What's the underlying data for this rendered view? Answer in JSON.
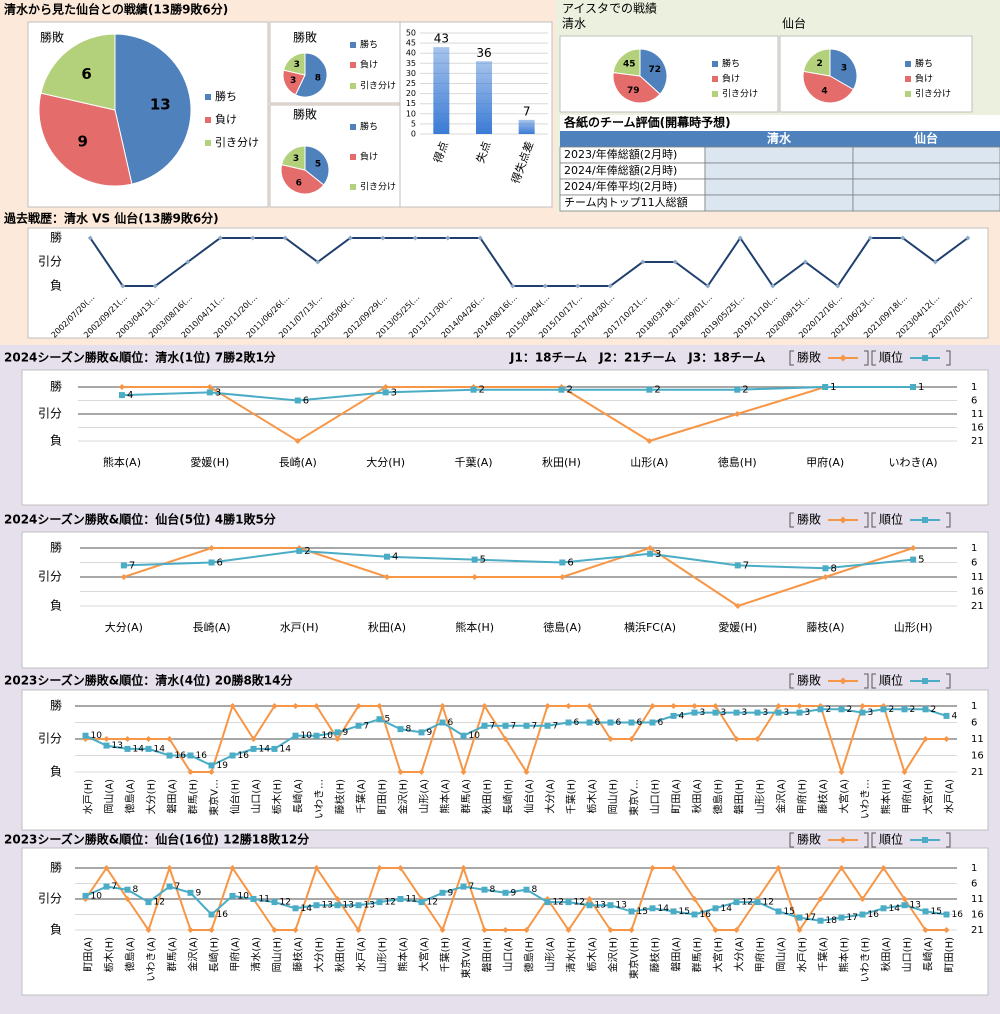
{
  "headings": {
    "overall": "清水から見た仙台との戦績(13勝9敗6分)",
    "stadium": "アイスタでの戦績"
  },
  "table": {
    "title": "各紙のチーム評価(開幕時予想)",
    "columns": [
      "清水",
      "仙台"
    ],
    "rows": [
      "2023/年俸総額(2月時)",
      "2024/年俸総額(2月時)",
      "2024/年俸平均(2月時)",
      "チーム内トップ11人総額"
    ]
  },
  "chart_data": [
    {
      "type": "pie",
      "title": "勝敗",
      "categories": [
        "勝ち",
        "負け",
        "引き分け"
      ],
      "values": [
        13,
        9,
        6
      ],
      "colors": [
        "#4f81bd",
        "#e46c6a",
        "#b3d07a"
      ]
    },
    {
      "type": "pie",
      "title": "勝敗",
      "categories": [
        "勝ち",
        "負け",
        "引き分け"
      ],
      "values": [
        8,
        3,
        3
      ],
      "colors": [
        "#4f81bd",
        "#e46c6a",
        "#b3d07a"
      ]
    },
    {
      "type": "pie",
      "title": "勝敗",
      "categories": [
        "勝ち",
        "負け",
        "引き分け"
      ],
      "values": [
        5,
        6,
        3
      ],
      "colors": [
        "#4f81bd",
        "#e46c6a",
        "#b3d07a"
      ]
    },
    {
      "type": "bar",
      "categories": [
        "得点",
        "失点",
        "得失点差"
      ],
      "values": [
        43,
        36,
        7
      ],
      "color": "#3a7bd5",
      "ylim": [
        0,
        50
      ],
      "yticks": [
        0,
        5,
        10,
        15,
        20,
        25,
        30,
        35,
        40,
        45,
        50
      ],
      "grid": true
    },
    {
      "type": "pie",
      "title": "清水",
      "categories": [
        "勝ち",
        "負け",
        "引き分け"
      ],
      "values": [
        72,
        79,
        45
      ],
      "colors": [
        "#4f81bd",
        "#e46c6a",
        "#b3d07a"
      ]
    },
    {
      "type": "pie",
      "title": "仙台",
      "categories": [
        "勝ち",
        "負け",
        "引き分け"
      ],
      "values": [
        3,
        4,
        2
      ],
      "colors": [
        "#4f81bd",
        "#e46c6a",
        "#b3d07a"
      ]
    },
    {
      "type": "line",
      "title": "過去戦歴：清水 VS 仙台(13勝9敗6分)",
      "categories": [
        "2002/07/20(…",
        "2002/09/21(…",
        "2003/04/13(…",
        "2003/08/16(…",
        "2010/04/11(…",
        "2010/11/20(…",
        "2011/06/26(…",
        "2011/07/13(…",
        "2012/05/06(…",
        "2012/09/29(…",
        "2013/05/25(…",
        "2013/11/30(…",
        "2014/04/26(…",
        "2014/08/16(…",
        "2015/04/04(…",
        "2015/10/17(…",
        "2017/04/30(…",
        "2017/10/21(…",
        "2018/03/18(…",
        "2018/09/01(…",
        "2019/05/25(…",
        "2019/11/10(…",
        "2020/08/15(…",
        "2020/12/16(…",
        "2021/06/23(…",
        "2021/09/18(…",
        "2023/04/12(…",
        "2023/07/05(…"
      ],
      "values": [
        1,
        -1,
        -1,
        0,
        1,
        1,
        1,
        0,
        1,
        1,
        1,
        1,
        1,
        -1,
        -1,
        -1,
        -1,
        0,
        0,
        -1,
        1,
        -1,
        0,
        -1,
        1,
        1,
        0,
        1
      ],
      "color": "#1f3f6e",
      "ylim": [
        -1,
        1
      ],
      "yticks": [
        {
          "value": 1,
          "label": "勝"
        },
        {
          "value": 0,
          "label": "引分"
        },
        {
          "value": -1,
          "label": "負"
        }
      ],
      "grid": false
    },
    {
      "type": "line",
      "title": "2024シーズン勝敗&順位：清水(1位) 7勝2敗1分",
      "annotation": "J1：18チーム　J2：21チーム　J3：18チーム",
      "categories": [
        "熊本(A)",
        "愛媛(H)",
        "長崎(A)",
        "大分(H)",
        "千葉(A)",
        "秋田(H)",
        "山形(A)",
        "徳島(H)",
        "甲府(A)",
        "いわき(A)"
      ],
      "series": [
        {
          "name": "勝敗",
          "color": "#f79646",
          "values": [
            1,
            1,
            -1,
            1,
            1,
            1,
            -1,
            0,
            1,
            1
          ]
        },
        {
          "name": "順位",
          "color": "#4bacc6",
          "axis": "y2",
          "values": [
            4,
            3,
            6,
            3,
            2,
            2,
            2,
            2,
            1,
            1
          ]
        }
      ],
      "ylim": [
        -1,
        1
      ],
      "yticks": [
        {
          "value": 1,
          "label": "勝"
        },
        {
          "value": 0,
          "label": "引分"
        },
        {
          "value": -1,
          "label": "負"
        }
      ],
      "y2lim": [
        21,
        1
      ],
      "y2ticks": [
        1,
        6,
        11,
        16,
        21
      ],
      "grid": true
    },
    {
      "type": "line",
      "title": "2024シーズン勝敗&順位：仙台(5位) 4勝1敗5分",
      "categories": [
        "大分(A)",
        "長崎(A)",
        "水戸(H)",
        "秋田(A)",
        "熊本(H)",
        "徳島(A)",
        "横浜FC(A)",
        "愛媛(H)",
        "藤枝(A)",
        "山形(H)"
      ],
      "series": [
        {
          "name": "勝敗",
          "color": "#f79646",
          "values": [
            0,
            1,
            1,
            0,
            0,
            0,
            1,
            -1,
            0,
            1
          ]
        },
        {
          "name": "順位",
          "color": "#4bacc6",
          "axis": "y2",
          "values": [
            7,
            6,
            2,
            4,
            5,
            6,
            3,
            7,
            8,
            5
          ]
        }
      ],
      "ylim": [
        -1,
        1
      ],
      "yticks": [
        {
          "value": 1,
          "label": "勝"
        },
        {
          "value": 0,
          "label": "引分"
        },
        {
          "value": -1,
          "label": "負"
        }
      ],
      "y2lim": [
        21,
        1
      ],
      "y2ticks": [
        1,
        6,
        11,
        16,
        21
      ],
      "grid": true
    },
    {
      "type": "line",
      "title": "2023シーズン勝敗&順位：清水(4位) 20勝8敗14分",
      "categories": [
        "水戸(H)",
        "岡山(A)",
        "徳島(A)",
        "大分(H)",
        "磐田(A)",
        "群馬(H)",
        "東京V…",
        "仙台(H)",
        "山口(A)",
        "栃木(H)",
        "長崎(A)",
        "いわき…",
        "藤枝(H)",
        "千葉(A)",
        "町田(H)",
        "金沢(H)",
        "山形(A)",
        "熊本(A)",
        "群馬(A)",
        "秋田(H)",
        "長崎(H)",
        "仙台(A)",
        "大分(A)",
        "千葉(H)",
        "栃木(A)",
        "岡山(H)",
        "東京V…",
        "山口(H)",
        "町田(A)",
        "秋田(A)",
        "徳島(H)",
        "磐田(H)",
        "山形(H)",
        "金沢(A)",
        "甲府(H)",
        "藤枝(A)",
        "大宮(A)",
        "いわき…",
        "熊本(H)",
        "甲府(A)",
        "大宮(H)",
        "水戸(A)"
      ],
      "series": [
        {
          "name": "勝敗",
          "color": "#f79646",
          "values": [
            0,
            0,
            0,
            0,
            0,
            -1,
            -1,
            1,
            0,
            1,
            1,
            1,
            0,
            1,
            1,
            -1,
            -1,
            1,
            -1,
            1,
            0,
            -1,
            1,
            1,
            1,
            0,
            0,
            1,
            1,
            1,
            1,
            0,
            0,
            1,
            1,
            1,
            -1,
            1,
            1,
            -1,
            0,
            0
          ]
        },
        {
          "name": "順位",
          "color": "#4bacc6",
          "axis": "y2",
          "values": [
            10,
            13,
            14,
            14,
            16,
            16,
            19,
            16,
            14,
            14,
            10,
            10,
            9,
            7,
            5,
            8,
            9,
            6,
            10,
            7,
            7,
            7,
            7,
            6,
            6,
            6,
            6,
            6,
            4,
            3,
            3,
            3,
            3,
            3,
            3,
            2,
            2,
            3,
            2,
            2,
            2,
            4
          ]
        }
      ],
      "ylim": [
        -1,
        1
      ],
      "yticks": [
        {
          "value": 1,
          "label": "勝"
        },
        {
          "value": 0,
          "label": "引分"
        },
        {
          "value": -1,
          "label": "負"
        }
      ],
      "y2lim": [
        21,
        1
      ],
      "y2ticks": [
        1,
        6,
        11,
        16,
        21
      ],
      "grid": true
    },
    {
      "type": "line",
      "title": "2023シーズン勝敗&順位：仙台(16位) 12勝18敗12分",
      "categories": [
        "町田(A)",
        "栃木(H)",
        "徳島(A)",
        "いわき(A)",
        "群馬(A)",
        "金沢(A)",
        "長崎(H)",
        "甲府(A)",
        "清水(A)",
        "岡山(H)",
        "藤枝(A)",
        "大分(H)",
        "秋田(H)",
        "水戸(A)",
        "山形(H)",
        "熊本(A)",
        "大宮(A)",
        "千葉(H)",
        "東京V(A)",
        "磐田(H)",
        "山口(A)",
        "徳島(H)",
        "山形(A)",
        "清水(H)",
        "栃木(A)",
        "金沢(H)",
        "東京V(H)",
        "藤枝(H)",
        "磐田(A)",
        "群馬(H)",
        "大宮(H)",
        "大分(A)",
        "甲府(H)",
        "岡山(A)",
        "水戸(H)",
        "千葉(A)",
        "熊本(H)",
        "いわき(H)",
        "秋田(A)",
        "山口(H)",
        "長崎(A)",
        "町田(H)"
      ],
      "series": [
        {
          "name": "勝敗",
          "color": "#f79646",
          "values": [
            0,
            1,
            0,
            -1,
            1,
            -1,
            -1,
            1,
            0,
            -1,
            -1,
            1,
            0,
            -1,
            1,
            1,
            0,
            -1,
            1,
            -1,
            -1,
            -1,
            0,
            -1,
            0,
            -1,
            -1,
            1,
            1,
            0,
            -1,
            -1,
            0,
            1,
            -1,
            0,
            1,
            0,
            1,
            0,
            -1,
            -1
          ]
        },
        {
          "name": "順位",
          "color": "#4bacc6",
          "axis": "y2",
          "values": [
            10,
            7,
            8,
            12,
            7,
            9,
            16,
            10,
            11,
            12,
            14,
            13,
            13,
            13,
            12,
            11,
            12,
            9,
            7,
            8,
            9,
            8,
            12,
            12,
            13,
            13,
            15,
            14,
            15,
            16,
            14,
            12,
            12,
            15,
            17,
            18,
            17,
            16,
            14,
            13,
            15,
            16
          ]
        }
      ],
      "ylim": [
        -1,
        1
      ],
      "yticks": [
        {
          "value": 1,
          "label": "勝"
        },
        {
          "value": 0,
          "label": "引分"
        },
        {
          "value": -1,
          "label": "負"
        }
      ],
      "y2lim": [
        21,
        1
      ],
      "y2ticks": [
        1,
        6,
        11,
        16,
        21
      ],
      "grid": true
    }
  ]
}
